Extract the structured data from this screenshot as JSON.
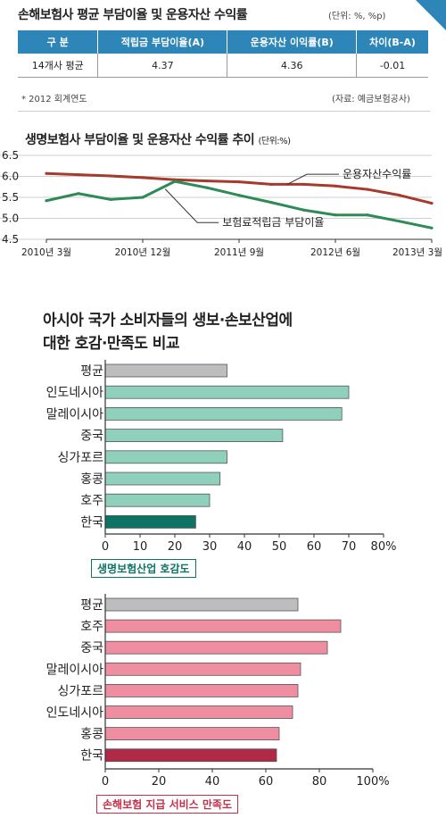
{
  "table": {
    "title": "손해보험사 평균 부담이율 및 운용자산 수익률",
    "unit": "(단위: %, %p)",
    "headers": [
      "구 분",
      "적립금 부담이율(A)",
      "운용자산 이익률(B)",
      "차이(B-A)"
    ],
    "row": [
      "14개사 평균",
      "4.37",
      "4.36",
      "-0.01"
    ],
    "note": "* 2012 회계연도",
    "source": "(자료: 예금보험공사)",
    "header_color": "#2e86b8"
  },
  "chart_data": [
    {
      "type": "line",
      "title": "생명보험사 부담이율 및 운용자산 수익률 추이",
      "unit": "(단위:%)",
      "x": [
        "2010년 3월",
        "",
        "",
        "2010년 12월",
        "",
        "",
        "2011년 9월",
        "",
        "",
        "2012년 6월",
        "",
        "",
        "2013년 3월"
      ],
      "x_tick_labels": [
        "2010년 3월",
        "2010년 12월",
        "2011년 9월",
        "2012년 6월",
        "2013년 3월"
      ],
      "ylim": [
        4.5,
        6.5
      ],
      "yticks": [
        "6.5",
        "6.0",
        "5.5",
        "5.0",
        "4.5"
      ],
      "series": [
        {
          "name": "운용자산수익률",
          "color": "#a63a2c",
          "values": [
            6.07,
            6.04,
            6.01,
            5.97,
            5.92,
            5.89,
            5.87,
            5.81,
            5.81,
            5.77,
            5.69,
            5.55,
            5.36
          ]
        },
        {
          "name": "보험료적립금 부담이율",
          "color": "#2e8b57",
          "values": [
            5.42,
            5.59,
            5.45,
            5.5,
            5.88,
            5.73,
            5.55,
            5.38,
            5.2,
            5.08,
            5.08,
            4.93,
            4.77
          ]
        }
      ]
    },
    {
      "type": "bar",
      "title": "아시아 국가 소비자들의 생보·손보산업에\n대한 호감·만족도 비교",
      "name": "생명보험산업 호감도",
      "categories": [
        "평균",
        "인도네시아",
        "말레이시아",
        "중국",
        "싱가포르",
        "홍콩",
        "호주",
        "한국"
      ],
      "values": [
        35,
        70,
        68,
        51,
        35,
        33,
        30,
        26
      ],
      "xlim": [
        0,
        80
      ],
      "xticks": [
        "0",
        "10",
        "20",
        "30",
        "40",
        "50",
        "60",
        "70",
        "80%"
      ],
      "colors": {
        "average": "#bdbdbf",
        "normal": "#8fd0bc",
        "korea": "#0d7366",
        "accent": "#0d7366"
      }
    },
    {
      "type": "bar",
      "name": "손해보험 지급 서비스 만족도",
      "categories": [
        "평균",
        "호주",
        "중국",
        "말레이시아",
        "싱가포르",
        "인도네시아",
        "홍콩",
        "한국"
      ],
      "values": [
        72,
        88,
        83,
        73,
        72,
        70,
        65,
        64
      ],
      "xlim": [
        0,
        100
      ],
      "xticks": [
        "0",
        "20",
        "40",
        "60",
        "80",
        "100%"
      ],
      "colors": {
        "average": "#bdbdbf",
        "normal": "#ee8ea0",
        "korea": "#b02a47",
        "accent": "#c2304a"
      }
    }
  ]
}
